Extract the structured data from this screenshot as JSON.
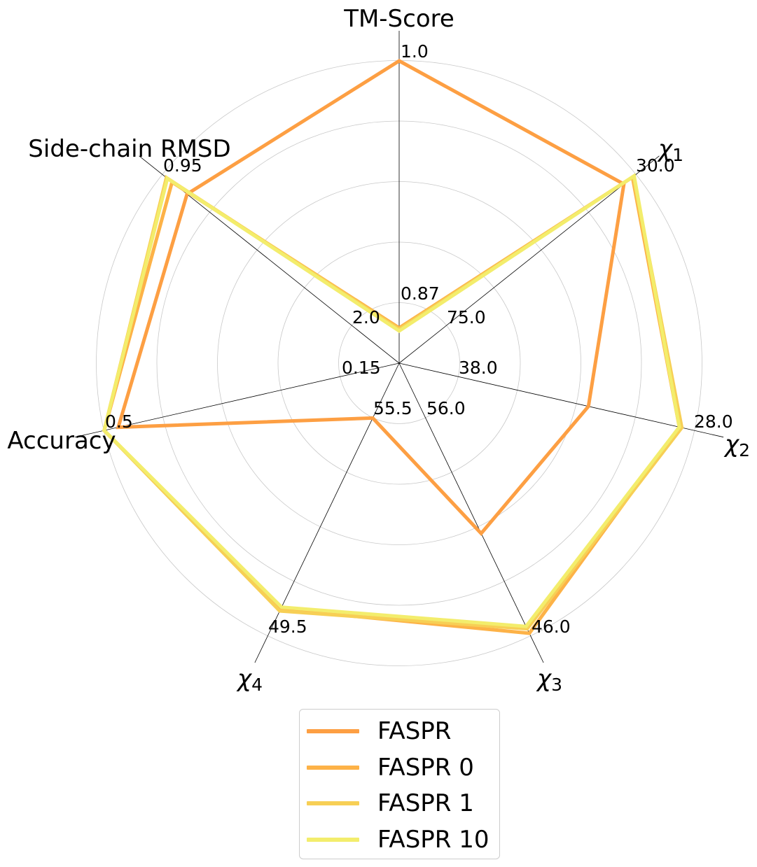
{
  "chart_data": {
    "type": "radar",
    "axes": [
      {
        "name": "TM-Score",
        "symbol": "",
        "sub": "",
        "inner_tick": "0.87",
        "outer_tick": "1.0",
        "min": 0.85,
        "max": 1.0
      },
      {
        "name": "",
        "symbol": "χ",
        "sub": "1",
        "inner_tick": "75.0",
        "outer_tick": "30.0",
        "min": 90.0,
        "max": 30.0
      },
      {
        "name": "",
        "symbol": "χ",
        "sub": "2",
        "inner_tick": "38.0",
        "outer_tick": "28.0",
        "min": 40.0,
        "max": 28.0
      },
      {
        "name": "",
        "symbol": "χ",
        "sub": "3",
        "inner_tick": "56.0",
        "outer_tick": "46.0",
        "min": 58.0,
        "max": 46.0
      },
      {
        "name": "",
        "symbol": "χ",
        "sub": "4",
        "inner_tick": "55.5",
        "outer_tick": "49.5",
        "min": 56.7,
        "max": 49.5
      },
      {
        "name": "Accuracy",
        "symbol": "",
        "sub": "",
        "inner_tick": "0.15",
        "outer_tick": "0.5",
        "min": 0.08,
        "max": 0.5
      },
      {
        "name": "Side-chain RMSD",
        "symbol": "",
        "sub": "",
        "inner_tick": "2.0",
        "outer_tick": "0.95",
        "min": 2.21,
        "max": 0.95
      }
    ],
    "series": [
      {
        "name": "FASPR",
        "color": "#fd9f43",
        "values": [
          1.0,
          33.0,
          32.3,
          50.5,
          55.25,
          0.48,
          1.08
        ]
      },
      {
        "name": "FASPR 0",
        "color": "#fdb247",
        "values": [
          0.8675,
          30.8,
          28.6,
          46.1,
          50.2,
          0.5,
          1.0
        ]
      },
      {
        "name": "FASPR 1",
        "color": "#f7cf55",
        "values": [
          0.8668,
          30.6,
          28.5,
          46.3,
          50.15,
          0.5,
          0.97
        ]
      },
      {
        "name": "FASPR 10",
        "color": "#f3ed6c",
        "values": [
          0.866,
          30.4,
          28.6,
          46.4,
          50.25,
          0.5,
          0.975
        ]
      }
    ],
    "grid": true,
    "legend_position": "bottom"
  }
}
